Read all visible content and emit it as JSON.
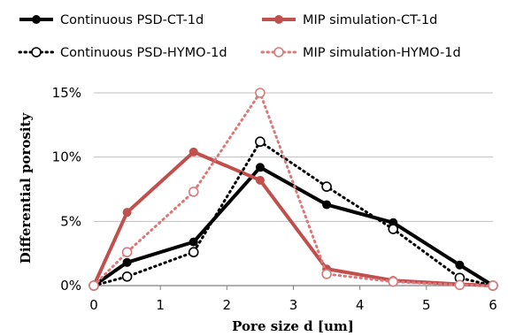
{
  "chart_data": {
    "type": "line",
    "xlabel": "Pore size d [um]",
    "ylabel": "Differential porosity",
    "xlim": [
      0,
      6
    ],
    "ylim": [
      0,
      15
    ],
    "x_ticks": [
      "0",
      "1",
      "2",
      "3",
      "4",
      "5",
      "6"
    ],
    "y_ticks": [
      "0%",
      "5%",
      "10%",
      "15%"
    ],
    "grid": "horizontal",
    "legend_position": "top",
    "series": [
      {
        "name": "Continuous PSD-CT-1d",
        "color": "#000000",
        "style": "solid",
        "marker": "filled-circle",
        "x": [
          0,
          0.5,
          1.5,
          2.5,
          3.5,
          4.5,
          5.5,
          6
        ],
        "y": [
          0.0,
          1.8,
          3.4,
          9.2,
          6.3,
          4.9,
          1.6,
          0.0
        ]
      },
      {
        "name": "MIP simulation-CT-1d",
        "color": "#c0504d",
        "style": "solid",
        "marker": "filled-circle",
        "x": [
          0,
          0.5,
          1.5,
          2.5,
          3.5,
          4.5,
          5.5,
          6
        ],
        "y": [
          0.0,
          5.7,
          10.4,
          8.2,
          1.3,
          0.4,
          0.1,
          0.0
        ]
      },
      {
        "name": "Continuous PSD-HYMO-1d",
        "color": "#000000",
        "style": "dotted",
        "marker": "open-circle",
        "x": [
          0,
          0.5,
          1.5,
          2.5,
          3.5,
          4.5,
          5.5,
          6
        ],
        "y": [
          0.0,
          0.7,
          2.6,
          11.2,
          7.7,
          4.4,
          0.6,
          0.0
        ]
      },
      {
        "name": "MIP simulation-HYMO-1d",
        "color": "#d9797a",
        "style": "dotted",
        "marker": "open-circle",
        "x": [
          0,
          0.5,
          1.5,
          2.5,
          3.5,
          4.5,
          5.5,
          6
        ],
        "y": [
          0.0,
          2.6,
          7.3,
          15.0,
          0.9,
          0.3,
          0.05,
          0.0
        ]
      }
    ]
  }
}
